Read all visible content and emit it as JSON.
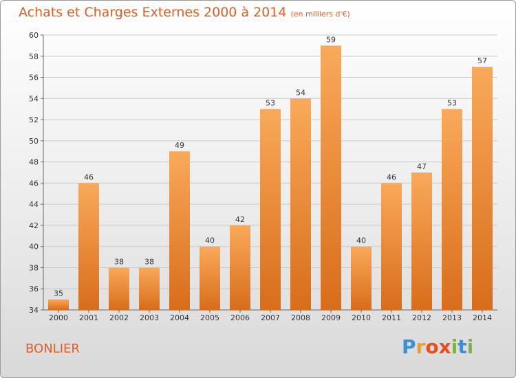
{
  "title": "Achats et Charges Externes 2000 à 2014",
  "subtitle": "(en milliers d'€)",
  "commune": "BONLIER",
  "logo": {
    "text": "Proxiti",
    "letters": [
      "P",
      "r",
      "o",
      "x",
      "i",
      "t",
      "i"
    ],
    "colors": [
      "#3a8fd6",
      "#f0a020",
      "#e94e1b",
      "#e94e1b",
      "#7cb342",
      "#3a8fd6",
      "#7cb342"
    ]
  },
  "colors": {
    "title": "#e15f26",
    "bar_top": "#f9a95a",
    "bar_bottom": "#d86d1a",
    "grid": "#c8c8c8"
  },
  "chart_data": {
    "type": "bar",
    "categories": [
      "2000",
      "2001",
      "2002",
      "2003",
      "2004",
      "2005",
      "2006",
      "2007",
      "2008",
      "2009",
      "2010",
      "2011",
      "2012",
      "2013",
      "2014"
    ],
    "values": [
      35,
      46,
      38,
      38,
      49,
      40,
      42,
      53,
      54,
      59,
      40,
      46,
      47,
      53,
      57
    ],
    "ylim": [
      34,
      60
    ],
    "yticks": [
      34,
      36,
      38,
      40,
      42,
      44,
      46,
      48,
      50,
      52,
      54,
      56,
      58,
      60
    ],
    "grid": true,
    "xlabel": "",
    "ylabel": ""
  }
}
